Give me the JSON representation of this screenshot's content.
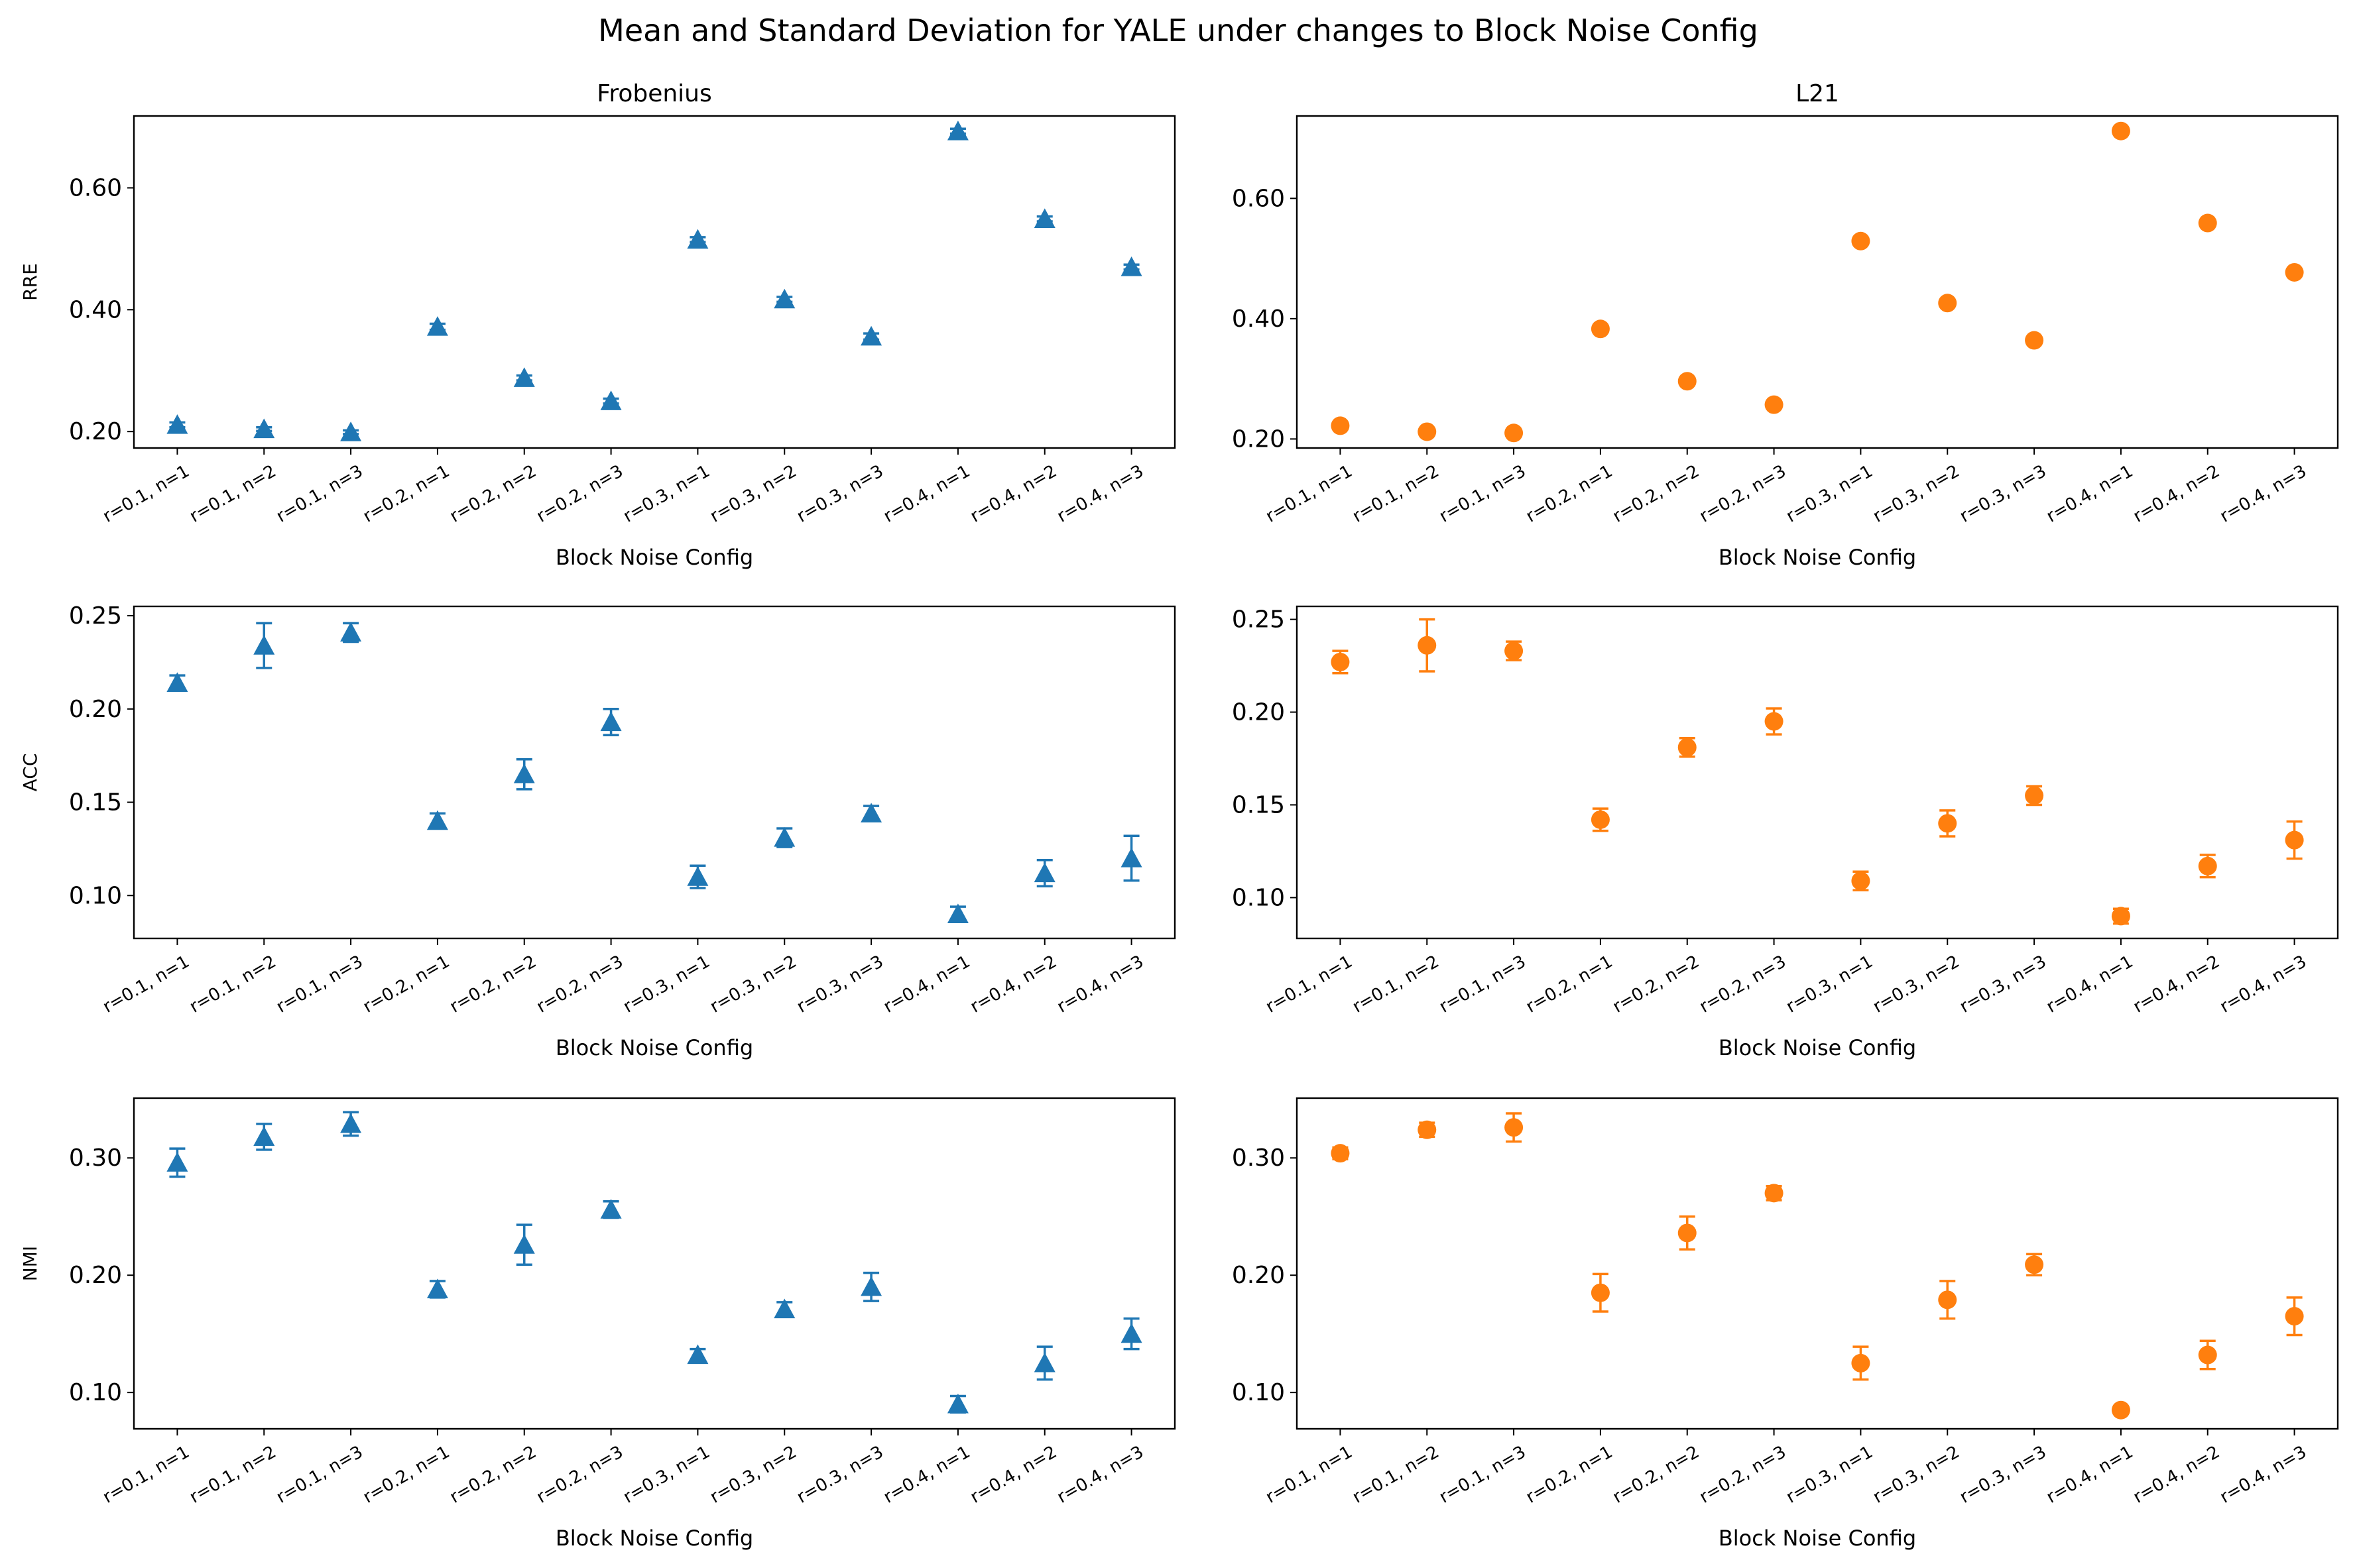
{
  "figure": {
    "title": "Mean and Standard Deviation for YALE under changes to Block Noise Config"
  },
  "chart_data": [
    {
      "type": "scatter",
      "panel": "RRE-Frobenius",
      "title": "Frobenius",
      "xlabel": "Block Noise Config",
      "ylabel": "RRE",
      "categories": [
        "r=0.1, n=1",
        "r=0.1, n=2",
        "r=0.1, n=3",
        "r=0.2, n=1",
        "r=0.2, n=2",
        "r=0.2, n=3",
        "r=0.3, n=1",
        "r=0.3, n=2",
        "r=0.3, n=3",
        "r=0.4, n=1",
        "r=0.4, n=2",
        "r=0.4, n=3"
      ],
      "values": [
        0.211,
        0.204,
        0.199,
        0.372,
        0.288,
        0.25,
        0.515,
        0.417,
        0.356,
        0.693,
        0.549,
        0.47
      ],
      "errors": [
        0.004,
        0.003,
        0.003,
        0.005,
        0.004,
        0.004,
        0.004,
        0.004,
        0.005,
        0.004,
        0.004,
        0.004
      ],
      "marker": "triangle",
      "color": "#1f77b4",
      "ylim": [
        0.173,
        0.718
      ],
      "yticks": [
        0.2,
        0.4,
        0.6
      ]
    },
    {
      "type": "scatter",
      "panel": "RRE-L21",
      "title": "L21",
      "xlabel": "Block Noise Config",
      "ylabel": "",
      "categories": [
        "r=0.1, n=1",
        "r=0.1, n=2",
        "r=0.1, n=3",
        "r=0.2, n=1",
        "r=0.2, n=2",
        "r=0.2, n=3",
        "r=0.3, n=1",
        "r=0.3, n=2",
        "r=0.3, n=3",
        "r=0.4, n=1",
        "r=0.4, n=2",
        "r=0.4, n=3"
      ],
      "values": [
        0.222,
        0.212,
        0.21,
        0.383,
        0.296,
        0.257,
        0.529,
        0.426,
        0.364,
        0.712,
        0.559,
        0.477
      ],
      "errors": [
        0.004,
        0.003,
        0.003,
        0.004,
        0.004,
        0.004,
        0.004,
        0.004,
        0.004,
        0.004,
        0.004,
        0.004
      ],
      "marker": "circle",
      "color": "#ff7f0e",
      "ylim": [
        0.185,
        0.737
      ],
      "yticks": [
        0.2,
        0.4,
        0.6
      ]
    },
    {
      "type": "scatter",
      "panel": "ACC-Frobenius",
      "title": "",
      "xlabel": "Block Noise Config",
      "ylabel": "ACC",
      "categories": [
        "r=0.1, n=1",
        "r=0.1, n=2",
        "r=0.1, n=3",
        "r=0.2, n=1",
        "r=0.2, n=2",
        "r=0.2, n=3",
        "r=0.3, n=1",
        "r=0.3, n=2",
        "r=0.3, n=3",
        "r=0.4, n=1",
        "r=0.4, n=2",
        "r=0.4, n=3"
      ],
      "values": [
        0.214,
        0.234,
        0.241,
        0.14,
        0.165,
        0.193,
        0.11,
        0.131,
        0.144,
        0.09,
        0.112,
        0.12
      ],
      "errors": [
        0.004,
        0.012,
        0.005,
        0.004,
        0.008,
        0.007,
        0.006,
        0.005,
        0.004,
        0.004,
        0.007,
        0.012
      ],
      "marker": "triangle",
      "color": "#1f77b4",
      "ylim": [
        0.077,
        0.255
      ],
      "yticks": [
        0.1,
        0.15,
        0.2,
        0.25
      ]
    },
    {
      "type": "scatter",
      "panel": "ACC-L21",
      "title": "",
      "xlabel": "Block Noise Config",
      "ylabel": "",
      "categories": [
        "r=0.1, n=1",
        "r=0.1, n=2",
        "r=0.1, n=3",
        "r=0.2, n=1",
        "r=0.2, n=2",
        "r=0.2, n=3",
        "r=0.3, n=1",
        "r=0.3, n=2",
        "r=0.3, n=3",
        "r=0.4, n=1",
        "r=0.4, n=2",
        "r=0.4, n=3"
      ],
      "values": [
        0.227,
        0.236,
        0.233,
        0.142,
        0.181,
        0.195,
        0.109,
        0.14,
        0.155,
        0.09,
        0.117,
        0.131
      ],
      "errors": [
        0.006,
        0.014,
        0.005,
        0.006,
        0.005,
        0.007,
        0.005,
        0.007,
        0.005,
        0.004,
        0.006,
        0.01
      ],
      "marker": "circle",
      "color": "#ff7f0e",
      "ylim": [
        0.078,
        0.257
      ],
      "yticks": [
        0.1,
        0.15,
        0.2,
        0.25
      ]
    },
    {
      "type": "scatter",
      "panel": "NMI-Frobenius",
      "title": "",
      "xlabel": "Block Noise Config",
      "ylabel": "NMI",
      "categories": [
        "r=0.1, n=1",
        "r=0.1, n=2",
        "r=0.1, n=3",
        "r=0.2, n=1",
        "r=0.2, n=2",
        "r=0.2, n=3",
        "r=0.3, n=1",
        "r=0.3, n=2",
        "r=0.3, n=3",
        "r=0.4, n=1",
        "r=0.4, n=2",
        "r=0.4, n=3"
      ],
      "values": [
        0.296,
        0.318,
        0.329,
        0.188,
        0.226,
        0.256,
        0.132,
        0.171,
        0.19,
        0.09,
        0.125,
        0.15
      ],
      "errors": [
        0.012,
        0.011,
        0.01,
        0.007,
        0.017,
        0.007,
        0.005,
        0.006,
        0.012,
        0.007,
        0.014,
        0.013
      ],
      "marker": "triangle",
      "color": "#1f77b4",
      "ylim": [
        0.069,
        0.351
      ],
      "yticks": [
        0.1,
        0.2,
        0.3
      ]
    },
    {
      "type": "scatter",
      "panel": "NMI-L21",
      "title": "",
      "xlabel": "Block Noise Config",
      "ylabel": "",
      "categories": [
        "r=0.1, n=1",
        "r=0.1, n=2",
        "r=0.1, n=3",
        "r=0.2, n=1",
        "r=0.2, n=2",
        "r=0.2, n=3",
        "r=0.3, n=1",
        "r=0.3, n=2",
        "r=0.3, n=3",
        "r=0.4, n=1",
        "r=0.4, n=2",
        "r=0.4, n=3"
      ],
      "values": [
        0.304,
        0.324,
        0.326,
        0.185,
        0.236,
        0.27,
        0.125,
        0.179,
        0.209,
        0.085,
        0.132,
        0.165
      ],
      "errors": [
        0.005,
        0.006,
        0.012,
        0.016,
        0.014,
        0.006,
        0.014,
        0.016,
        0.009,
        0.003,
        0.012,
        0.016
      ],
      "marker": "circle",
      "color": "#ff7f0e",
      "ylim": [
        0.069,
        0.351
      ],
      "yticks": [
        0.1,
        0.2,
        0.3
      ]
    }
  ]
}
